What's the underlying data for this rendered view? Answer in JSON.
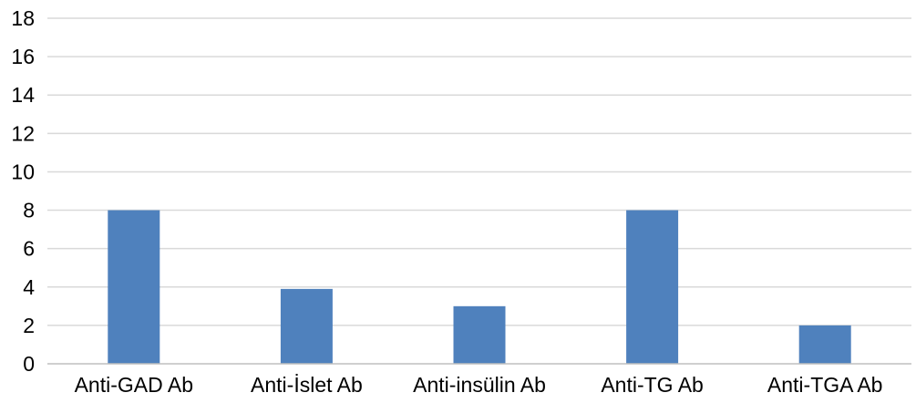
{
  "chart_data": {
    "type": "bar",
    "title": "",
    "xlabel": "",
    "ylabel": "",
    "categories": [
      "Anti-GAD Ab",
      "Anti-İslet Ab",
      "Anti-insülin Ab",
      "Anti-TG Ab",
      "Anti-TGA Ab"
    ],
    "series": [
      {
        "values": [
          8,
          3.9,
          3,
          8,
          2
        ]
      }
    ],
    "ylim": [
      0,
      18
    ],
    "yticks": [
      0,
      2,
      4,
      6,
      8,
      10,
      12,
      14,
      16,
      18
    ],
    "grid": true,
    "legend": "none",
    "colors": {
      "bar": "#4f81bd"
    }
  }
}
